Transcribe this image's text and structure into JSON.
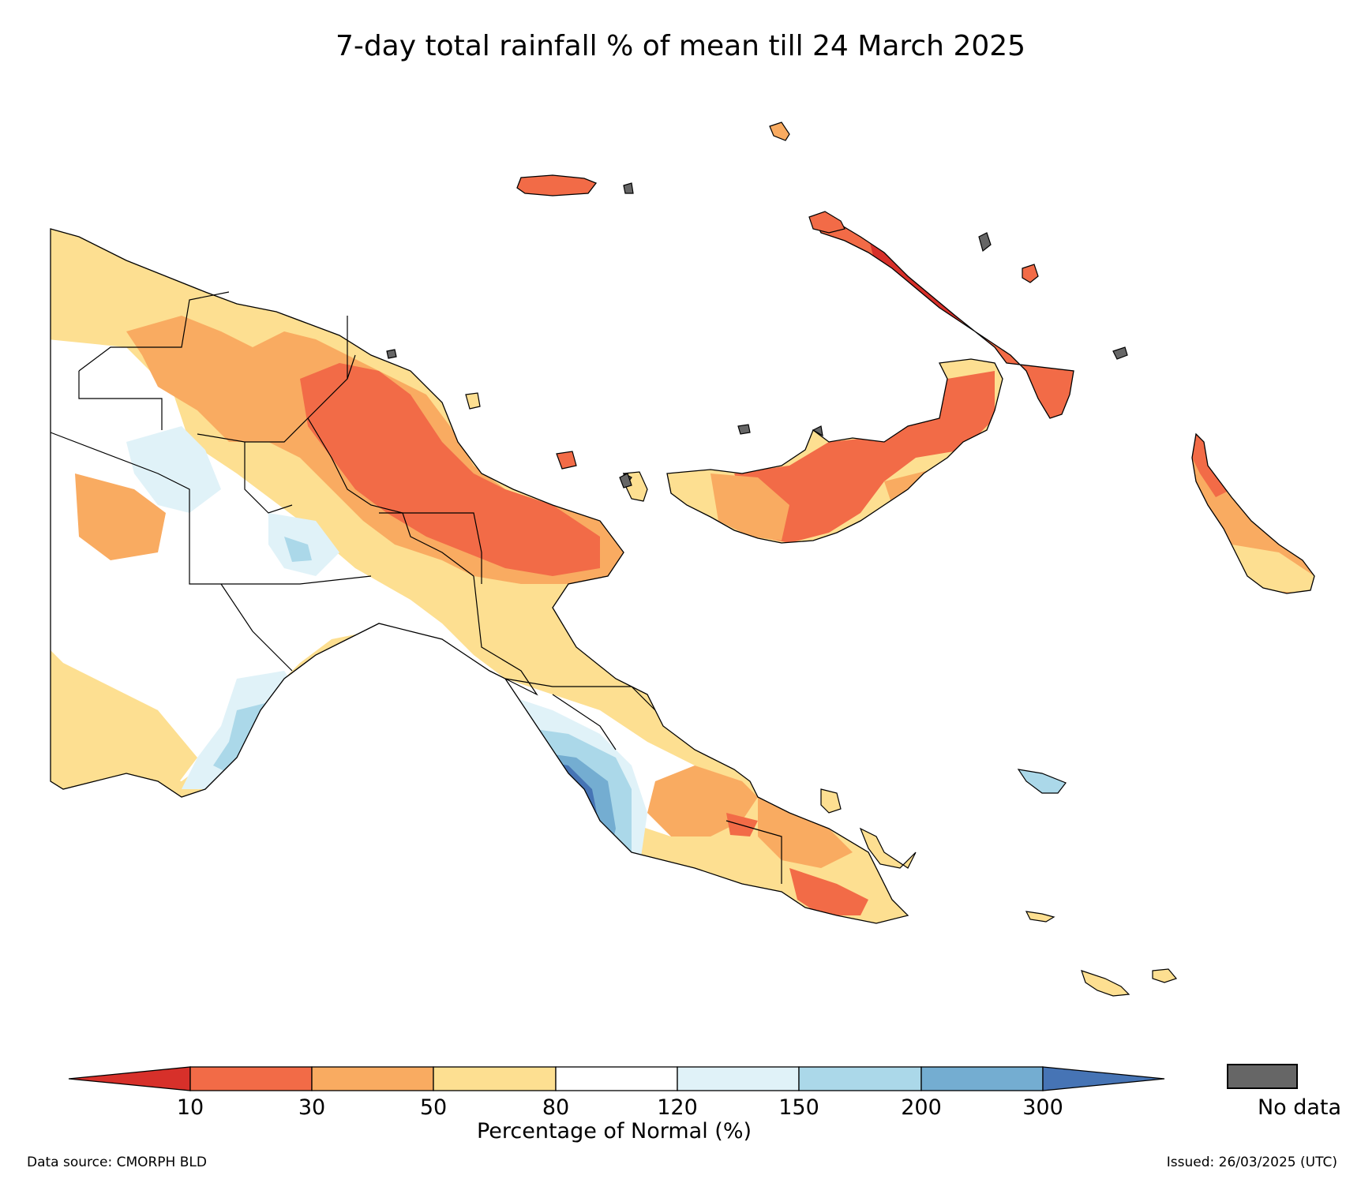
{
  "title": "7-day total rainfall % of mean till 24 March 2025",
  "colorbar": {
    "label": "Percentage of Normal (%)",
    "ticks": [
      "10",
      "30",
      "50",
      "80",
      "120",
      "150",
      "200",
      "300"
    ],
    "classes": [
      {
        "range": "<10",
        "color": "#d7302a"
      },
      {
        "range": "10-30",
        "color": "#f26b47"
      },
      {
        "range": "30-50",
        "color": "#f9ab61"
      },
      {
        "range": "50-80",
        "color": "#fddf91"
      },
      {
        "range": "80-120",
        "color": "#ffffff"
      },
      {
        "range": "120-150",
        "color": "#e0f2f8"
      },
      {
        "range": "150-200",
        "color": "#abd8e9"
      },
      {
        "range": "200-300",
        "color": "#74add1"
      },
      {
        "range": ">300",
        "color": "#4674b5"
      }
    ],
    "no_data_label": "No data",
    "no_data_color": "#666666"
  },
  "footer": {
    "source": "Data source: CMORPH BLD",
    "issued": "Issued: 26/03/2025 (UTC)"
  }
}
